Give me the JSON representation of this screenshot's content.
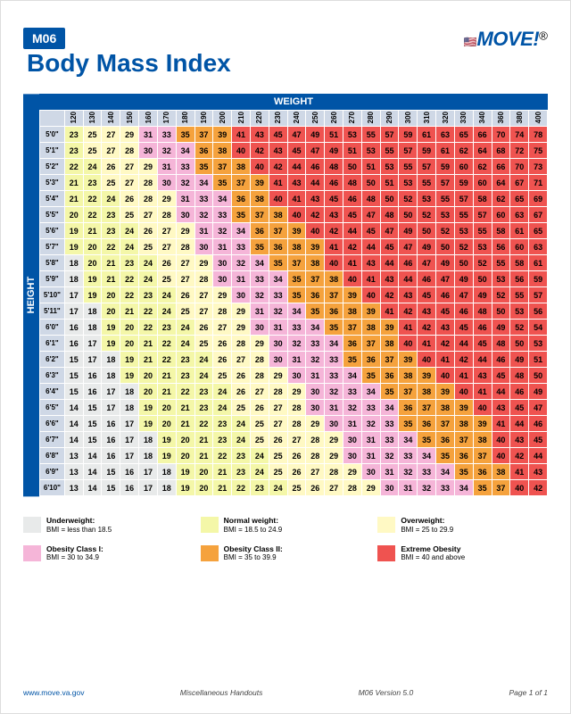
{
  "tag": "M06",
  "title": "Body Mass Index",
  "logo": {
    "text": "MOVE!",
    "reg": "®"
  },
  "axis": {
    "weight": "WEIGHT",
    "height": "HEIGHT"
  },
  "colors": {
    "underweight": "#e8eaea",
    "normal": "#f4f7a8",
    "overweight": "#fff9c4",
    "ob1": "#f5b5d8",
    "ob2": "#f5a23d",
    "ob3": "#ef5350",
    "header_bg": "#cfd8e6",
    "brand": "#0054a6"
  },
  "weights": [
    120,
    130,
    140,
    150,
    160,
    170,
    180,
    190,
    200,
    210,
    220,
    230,
    240,
    250,
    260,
    270,
    280,
    290,
    300,
    310,
    320,
    330,
    340,
    360,
    380,
    400
  ],
  "heights": [
    "5'0\"",
    "5'1\"",
    "5'2\"",
    "5'3\"",
    "5'4\"",
    "5'5\"",
    "5'6\"",
    "5'7\"",
    "5'8\"",
    "5'9\"",
    "5'10\"",
    "5'11\"",
    "6'0\"",
    "6'1\"",
    "6'2\"",
    "6'3\"",
    "6'4\"",
    "6'5\"",
    "6'6\"",
    "6'7\"",
    "6'8\"",
    "6'9\"",
    "6'10\""
  ],
  "bmi": [
    [
      23,
      25,
      27,
      29,
      31,
      33,
      35,
      37,
      39,
      41,
      43,
      45,
      47,
      49,
      51,
      53,
      55,
      57,
      59,
      61,
      63,
      65,
      66,
      70,
      74,
      78
    ],
    [
      23,
      25,
      27,
      28,
      30,
      32,
      34,
      36,
      38,
      40,
      42,
      43,
      45,
      47,
      49,
      51,
      53,
      55,
      57,
      59,
      61,
      62,
      64,
      68,
      72,
      75
    ],
    [
      22,
      24,
      26,
      27,
      29,
      31,
      33,
      35,
      37,
      38,
      40,
      42,
      44,
      46,
      48,
      50,
      51,
      53,
      55,
      57,
      59,
      60,
      62,
      66,
      70,
      73
    ],
    [
      21,
      23,
      25,
      27,
      28,
      30,
      32,
      34,
      35,
      37,
      39,
      41,
      43,
      44,
      46,
      48,
      50,
      51,
      53,
      55,
      57,
      59,
      60,
      64,
      67,
      71
    ],
    [
      21,
      22,
      24,
      26,
      28,
      29,
      31,
      33,
      34,
      36,
      38,
      40,
      41,
      43,
      45,
      46,
      48,
      50,
      52,
      53,
      55,
      57,
      58,
      62,
      65,
      69
    ],
    [
      20,
      22,
      23,
      25,
      27,
      28,
      30,
      32,
      33,
      35,
      37,
      38,
      40,
      42,
      43,
      45,
      47,
      48,
      50,
      52,
      53,
      55,
      57,
      60,
      63,
      67
    ],
    [
      19,
      21,
      23,
      24,
      26,
      27,
      29,
      31,
      32,
      34,
      36,
      37,
      39,
      40,
      42,
      44,
      45,
      47,
      49,
      50,
      52,
      53,
      55,
      58,
      61,
      65
    ],
    [
      19,
      20,
      22,
      24,
      25,
      27,
      28,
      30,
      31,
      33,
      35,
      36,
      38,
      39,
      41,
      42,
      44,
      45,
      47,
      49,
      50,
      52,
      53,
      56,
      60,
      63
    ],
    [
      18,
      20,
      21,
      23,
      24,
      26,
      27,
      29,
      30,
      32,
      34,
      35,
      37,
      38,
      40,
      41,
      43,
      44,
      46,
      47,
      49,
      50,
      52,
      55,
      58,
      61
    ],
    [
      18,
      19,
      21,
      22,
      24,
      25,
      27,
      28,
      30,
      31,
      33,
      34,
      35,
      37,
      38,
      40,
      41,
      43,
      44,
      46,
      47,
      49,
      50,
      53,
      56,
      59
    ],
    [
      17,
      19,
      20,
      22,
      23,
      24,
      26,
      27,
      29,
      30,
      32,
      33,
      35,
      36,
      37,
      39,
      40,
      42,
      43,
      45,
      46,
      47,
      49,
      52,
      55,
      57
    ],
    [
      17,
      18,
      20,
      21,
      22,
      24,
      25,
      27,
      28,
      29,
      31,
      32,
      34,
      35,
      36,
      38,
      39,
      41,
      42,
      43,
      45,
      46,
      48,
      50,
      53,
      56
    ],
    [
      16,
      18,
      19,
      20,
      22,
      23,
      24,
      26,
      27,
      29,
      30,
      31,
      33,
      34,
      35,
      37,
      38,
      39,
      41,
      42,
      43,
      45,
      46,
      49,
      52,
      54
    ],
    [
      16,
      17,
      19,
      20,
      21,
      22,
      24,
      25,
      26,
      28,
      29,
      30,
      32,
      33,
      34,
      36,
      37,
      38,
      40,
      41,
      42,
      44,
      45,
      48,
      50,
      53
    ],
    [
      15,
      17,
      18,
      19,
      21,
      22,
      23,
      24,
      26,
      27,
      28,
      30,
      31,
      32,
      33,
      35,
      36,
      37,
      39,
      40,
      41,
      42,
      44,
      46,
      49,
      51
    ],
    [
      15,
      16,
      18,
      19,
      20,
      21,
      23,
      24,
      25,
      26,
      28,
      29,
      30,
      31,
      33,
      34,
      35,
      36,
      38,
      39,
      40,
      41,
      43,
      45,
      48,
      50
    ],
    [
      15,
      16,
      17,
      18,
      20,
      21,
      22,
      23,
      24,
      26,
      27,
      28,
      29,
      30,
      32,
      33,
      34,
      35,
      37,
      38,
      39,
      40,
      41,
      44,
      46,
      49
    ],
    [
      14,
      15,
      17,
      18,
      19,
      20,
      21,
      23,
      24,
      25,
      26,
      27,
      28,
      30,
      31,
      32,
      33,
      34,
      36,
      37,
      38,
      39,
      40,
      43,
      45,
      47
    ],
    [
      14,
      15,
      16,
      17,
      19,
      20,
      21,
      22,
      23,
      24,
      25,
      27,
      28,
      29,
      30,
      31,
      32,
      33,
      35,
      36,
      37,
      38,
      39,
      41,
      44,
      46
    ],
    [
      14,
      15,
      16,
      17,
      18,
      19,
      20,
      21,
      23,
      24,
      25,
      26,
      27,
      28,
      29,
      30,
      31,
      33,
      34,
      35,
      36,
      37,
      38,
      40,
      43,
      45
    ],
    [
      13,
      14,
      16,
      17,
      18,
      19,
      20,
      21,
      22,
      23,
      24,
      25,
      26,
      28,
      29,
      30,
      31,
      32,
      33,
      34,
      35,
      36,
      37,
      40,
      42,
      44
    ],
    [
      13,
      14,
      15,
      16,
      17,
      18,
      19,
      20,
      21,
      23,
      24,
      25,
      26,
      27,
      28,
      29,
      30,
      31,
      32,
      33,
      34,
      35,
      36,
      38,
      41,
      43
    ],
    [
      13,
      14,
      15,
      16,
      17,
      18,
      19,
      20,
      21,
      22,
      23,
      24,
      25,
      26,
      27,
      28,
      29,
      30,
      31,
      32,
      33,
      34,
      35,
      37,
      40,
      42
    ]
  ],
  "legend": [
    {
      "label": "Underweight:",
      "sub": "BMI = less than 18.5",
      "key": "underweight"
    },
    {
      "label": "Normal weight:",
      "sub": "BMI = 18.5 to 24.9",
      "key": "normal"
    },
    {
      "label": "Overweight:",
      "sub": "BMI = 25 to 29.9",
      "key": "overweight"
    },
    {
      "label": "Obesity Class I:",
      "sub": "BMI = 30 to 34.9",
      "key": "ob1"
    },
    {
      "label": "Obesity Class II:",
      "sub": "BMI = 35 to 39.9",
      "key": "ob2"
    },
    {
      "label": "Extreme Obesity",
      "sub": "BMI = 40 and above",
      "key": "ob3"
    }
  ],
  "footer": {
    "url": "www.move.va.gov",
    "center": "Miscellaneous Handouts",
    "version": "M06 Version 5.0",
    "page": "Page 1 of 1"
  }
}
